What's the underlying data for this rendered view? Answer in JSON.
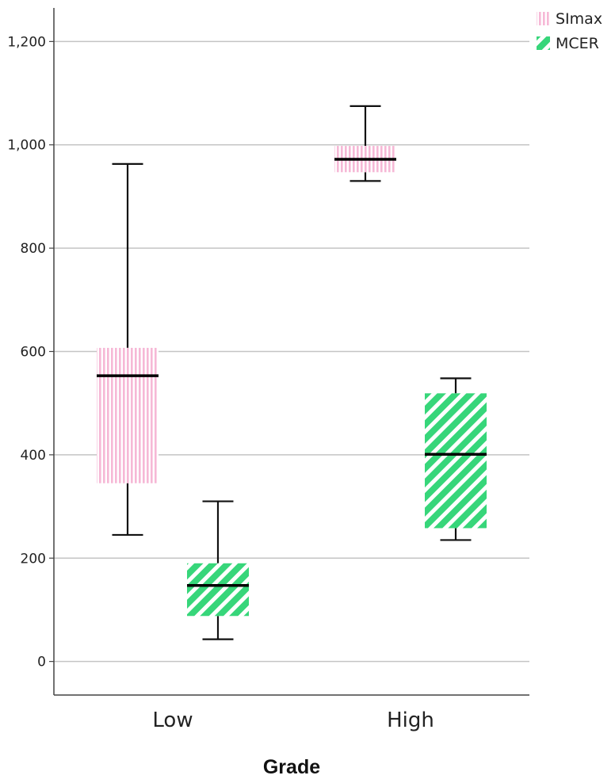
{
  "chart_data": {
    "type": "boxplot",
    "title": "",
    "xlabel": "Grade",
    "ylabel": "",
    "categories": [
      "Low",
      "High"
    ],
    "ylim": [
      -65,
      1265
    ],
    "yticks": [
      0,
      200,
      400,
      600,
      800,
      1000,
      1200
    ],
    "ytick_labels": [
      "0",
      "200",
      "400",
      "600",
      "800",
      "1,000",
      "1,200"
    ],
    "grid": true,
    "legend_position": "top-right",
    "series": [
      {
        "name": "SImax",
        "color": "#f6b8d6",
        "pattern": "vertical-stripes",
        "boxes": [
          {
            "category": "Low",
            "min": 245,
            "q1": 345,
            "median": 553,
            "q3": 607,
            "max": 963
          },
          {
            "category": "High",
            "min": 930,
            "q1": 947,
            "median": 972,
            "q3": 998,
            "max": 1075
          }
        ]
      },
      {
        "name": "MCER",
        "color": "#37d67a",
        "pattern": "diagonal-stripes",
        "boxes": [
          {
            "category": "Low",
            "min": 43,
            "q1": 88,
            "median": 147,
            "q3": 190,
            "max": 310
          },
          {
            "category": "High",
            "min": 235,
            "q1": 258,
            "median": 401,
            "q3": 519,
            "max": 548
          }
        ]
      }
    ]
  }
}
